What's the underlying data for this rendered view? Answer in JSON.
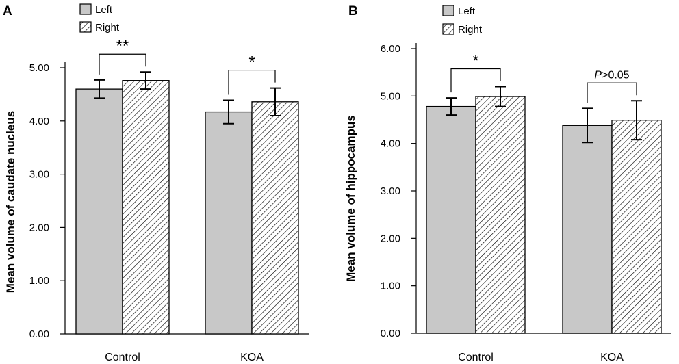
{
  "chart_data": [
    {
      "type": "bar",
      "panel": "A",
      "ylabel": "Mean volume of caudate nucleus",
      "xlabel": "",
      "categories": [
        "Control",
        "KOA"
      ],
      "ylim": [
        0,
        5.0
      ],
      "yticks": [
        "0.00",
        "1.00",
        "2.00",
        "3.00",
        "4.00",
        "5.00"
      ],
      "legend": {
        "position": "top-left",
        "entries": [
          "Left",
          "Right"
        ]
      },
      "series": [
        {
          "name": "Left",
          "pattern": "solid",
          "color": "#c8c8c8",
          "values": [
            4.6,
            4.17
          ],
          "errors": [
            0.17,
            0.22
          ]
        },
        {
          "name": "Right",
          "pattern": "hatched",
          "color": "#ffffff",
          "values": [
            4.76,
            4.36
          ],
          "errors": [
            0.16,
            0.26
          ]
        }
      ],
      "significance": [
        {
          "category": "Control",
          "label": "**",
          "italic_prefix": ""
        },
        {
          "category": "KOA",
          "label": "*",
          "italic_prefix": ""
        }
      ]
    },
    {
      "type": "bar",
      "panel": "B",
      "ylabel": "Mean volume of hippocampus",
      "xlabel": "",
      "categories": [
        "Control",
        "KOA"
      ],
      "ylim": [
        0,
        6.0
      ],
      "yticks": [
        "0.00",
        "1.00",
        "2.00",
        "3.00",
        "4.00",
        "5.00",
        "6.00"
      ],
      "legend": {
        "position": "top-left",
        "entries": [
          "Left",
          "Right"
        ]
      },
      "series": [
        {
          "name": "Left",
          "pattern": "solid",
          "color": "#c8c8c8",
          "values": [
            4.78,
            4.38
          ],
          "errors": [
            0.18,
            0.36
          ]
        },
        {
          "name": "Right",
          "pattern": "hatched",
          "color": "#ffffff",
          "values": [
            4.99,
            4.49
          ],
          "errors": [
            0.21,
            0.41
          ]
        }
      ],
      "significance": [
        {
          "category": "Control",
          "label": "*",
          "italic_prefix": ""
        },
        {
          "category": "KOA",
          "label": ">0.05",
          "italic_prefix": "P"
        }
      ]
    }
  ]
}
